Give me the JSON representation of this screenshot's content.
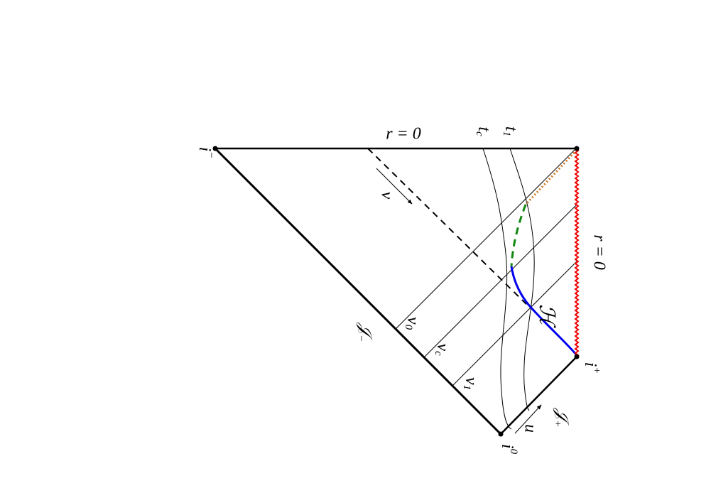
{
  "labels": {
    "i_minus": {
      "base": "i",
      "sup": "−"
    },
    "r0_top": "r = 0",
    "t_c": {
      "base": "t",
      "sub": "c"
    },
    "t_1": {
      "base": "t",
      "sub": "1"
    },
    "v_arrow": "v",
    "r0_right": "r = 0",
    "horizon": "ℋ",
    "scri_minus": {
      "base": "𝒥",
      "sub": "−"
    },
    "v_0": {
      "base": "v",
      "sub": "0"
    },
    "v_c": {
      "base": "v",
      "sub": "c"
    },
    "v_1": {
      "base": "v",
      "sub": "1"
    },
    "i_plus": {
      "base": "i",
      "sup": "+"
    },
    "scri_plus": {
      "base": "𝒥",
      "sub": "+"
    },
    "u_arrow": "u",
    "i_zero": {
      "base": "i",
      "sup": "0"
    }
  }
}
